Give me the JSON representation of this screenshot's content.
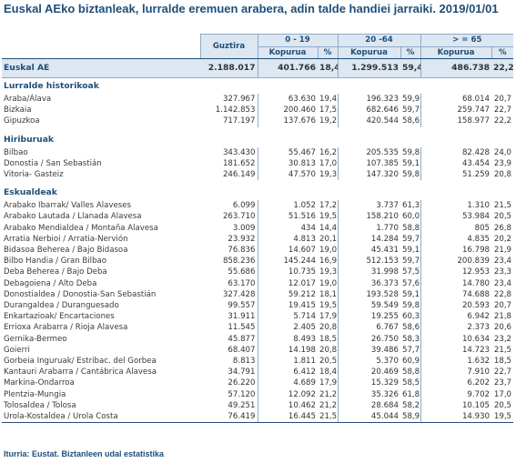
{
  "title": "Euskal AEko biztanleak, lurralde eremuen arabera, adin talde handiei jarraiki. 2019/01/01",
  "header": {
    "total": "Guztira",
    "groups": [
      "0 - 19",
      "20 -64",
      "> = 65"
    ],
    "kopurua": "Kopurua",
    "pct": "%"
  },
  "eae": {
    "name": "Euskal AE",
    "total": "2.188.017",
    "g1": "401.766",
    "p1": "18,4",
    "g2": "1.299.513",
    "p2": "59,4",
    "g3": "486.738",
    "p3": "22,2"
  },
  "sections": [
    {
      "title": "Lurralde historikoak",
      "rows": [
        {
          "name": "Araba/Álava",
          "total": "327.967",
          "g1": "63.630",
          "p1": "19,4",
          "g2": "196.323",
          "p2": "59,9",
          "g3": "68.014",
          "p3": "20,7"
        },
        {
          "name": "Bizkaia",
          "total": "1.142.853",
          "g1": "200.460",
          "p1": "17,5",
          "g2": "682.646",
          "p2": "59,7",
          "g3": "259.747",
          "p3": "22,7"
        },
        {
          "name": "Gipuzkoa",
          "total": "717.197",
          "g1": "137.676",
          "p1": "19,2",
          "g2": "420.544",
          "p2": "58,6",
          "g3": "158.977",
          "p3": "22,2"
        }
      ]
    },
    {
      "title": "Hiriburuak",
      "rows": [
        {
          "name": "Bilbao",
          "total": "343.430",
          "g1": "55.467",
          "p1": "16,2",
          "g2": "205.535",
          "p2": "59,8",
          "g3": "82.428",
          "p3": "24,0"
        },
        {
          "name": "Donostia / San Sebastián",
          "total": "181.652",
          "g1": "30.813",
          "p1": "17,0",
          "g2": "107.385",
          "p2": "59,1",
          "g3": "43.454",
          "p3": "23,9"
        },
        {
          "name": "Vitoria- Gasteiz",
          "total": "246.149",
          "g1": "47.570",
          "p1": "19,3",
          "g2": "147.320",
          "p2": "59,8",
          "g3": "51.259",
          "p3": "20,8"
        }
      ]
    },
    {
      "title": "Eskualdeak",
      "rows": [
        {
          "name": "Arabako Ibarrak/ Valles Alaveses",
          "total": "6.099",
          "g1": "1.052",
          "p1": "17,2",
          "g2": "3.737",
          "p2": "61,3",
          "g3": "1.310",
          "p3": "21,5"
        },
        {
          "name": "Arabako Lautada / Llanada Alavesa",
          "total": "263.710",
          "g1": "51.516",
          "p1": "19,5",
          "g2": "158.210",
          "p2": "60,0",
          "g3": "53.984",
          "p3": "20,5"
        },
        {
          "name": "Arabako Mendialdea / Montaña Alavesa",
          "total": "3.009",
          "g1": "434",
          "p1": "14,4",
          "g2": "1.770",
          "p2": "58,8",
          "g3": "805",
          "p3": "26,8"
        },
        {
          "name": "Arratia Nerbioi / Arratia-Nervión",
          "total": "23.932",
          "g1": "4.813",
          "p1": "20,1",
          "g2": "14.284",
          "p2": "59,7",
          "g3": "4.835",
          "p3": "20,2"
        },
        {
          "name": "Bidasoa Beherea / Bajo Bidasoa",
          "total": "76.836",
          "g1": "14.607",
          "p1": "19,0",
          "g2": "45.431",
          "p2": "59,1",
          "g3": "16.798",
          "p3": "21,9"
        },
        {
          "name": "Bilbo Handia / Gran Bilbao",
          "total": "858.236",
          "g1": "145.244",
          "p1": "16,9",
          "g2": "512.153",
          "p2": "59,7",
          "g3": "200.839",
          "p3": "23,4"
        },
        {
          "name": "Deba Beherea / Bajo Deba",
          "total": "55.686",
          "g1": "10.735",
          "p1": "19,3",
          "g2": "31.998",
          "p2": "57,5",
          "g3": "12.953",
          "p3": "23,3"
        },
        {
          "name": "Debagoiena / Alto Deba",
          "total": "63.170",
          "g1": "12.017",
          "p1": "19,0",
          "g2": "36.373",
          "p2": "57,6",
          "g3": "14.780",
          "p3": "23,4"
        },
        {
          "name": "Donostialdea / Donostia-San Sebastián",
          "total": "327.428",
          "g1": "59.212",
          "p1": "18,1",
          "g2": "193.528",
          "p2": "59,1",
          "g3": "74.688",
          "p3": "22,8"
        },
        {
          "name": "Durangaldea / Duranguesado",
          "total": "99.557",
          "g1": "19.415",
          "p1": "19,5",
          "g2": "59.549",
          "p2": "59,8",
          "g3": "20.593",
          "p3": "20,7"
        },
        {
          "name": "Enkartazioak/ Encartaciones",
          "total": "31.911",
          "g1": "5.714",
          "p1": "17,9",
          "g2": "19.255",
          "p2": "60,3",
          "g3": "6.942",
          "p3": "21,8"
        },
        {
          "name": "Errioxa Arabarra / Rioja Alavesa",
          "total": "11.545",
          "g1": "2.405",
          "p1": "20,8",
          "g2": "6.767",
          "p2": "58,6",
          "g3": "2.373",
          "p3": "20,6"
        },
        {
          "name": "Gernika-Bermeo",
          "total": "45.877",
          "g1": "8.493",
          "p1": "18,5",
          "g2": "26.750",
          "p2": "58,3",
          "g3": "10.634",
          "p3": "23,2"
        },
        {
          "name": "Goierri",
          "total": "68.407",
          "g1": "14.198",
          "p1": "20,8",
          "g2": "39.486",
          "p2": "57,7",
          "g3": "14.723",
          "p3": "21,5"
        },
        {
          "name": "Gorbeia Inguruak/ Estribac. del Gorbea",
          "total": "8.813",
          "g1": "1.811",
          "p1": "20,5",
          "g2": "5.370",
          "p2": "60,9",
          "g3": "1.632",
          "p3": "18,5"
        },
        {
          "name": "Kantauri Arabarra / Cantábrica Alavesa",
          "total": "34.791",
          "g1": "6.412",
          "p1": "18,4",
          "g2": "20.469",
          "p2": "58,8",
          "g3": "7.910",
          "p3": "22,7"
        },
        {
          "name": "Markina-Ondarroa",
          "total": "26.220",
          "g1": "4.689",
          "p1": "17,9",
          "g2": "15.329",
          "p2": "58,5",
          "g3": "6.202",
          "p3": "23,7"
        },
        {
          "name": "Plentzia-Mungia",
          "total": "57.120",
          "g1": "12.092",
          "p1": "21,2",
          "g2": "35.326",
          "p2": "61,8",
          "g3": "9.702",
          "p3": "17,0"
        },
        {
          "name": "Tolosaldea / Tolosa",
          "total": "49.251",
          "g1": "10.462",
          "p1": "21,2",
          "g2": "28.684",
          "p2": "58,2",
          "g3": "10.105",
          "p3": "20,5"
        },
        {
          "name": "Urola-Kostaldea / Urola Costa",
          "total": "76.419",
          "g1": "16.445",
          "p1": "21,5",
          "g2": "45.044",
          "p2": "58,9",
          "g3": "14.930",
          "p3": "19,5"
        }
      ]
    }
  ],
  "source": "Iturria: Eustat. Biztanleen udal estatistika"
}
